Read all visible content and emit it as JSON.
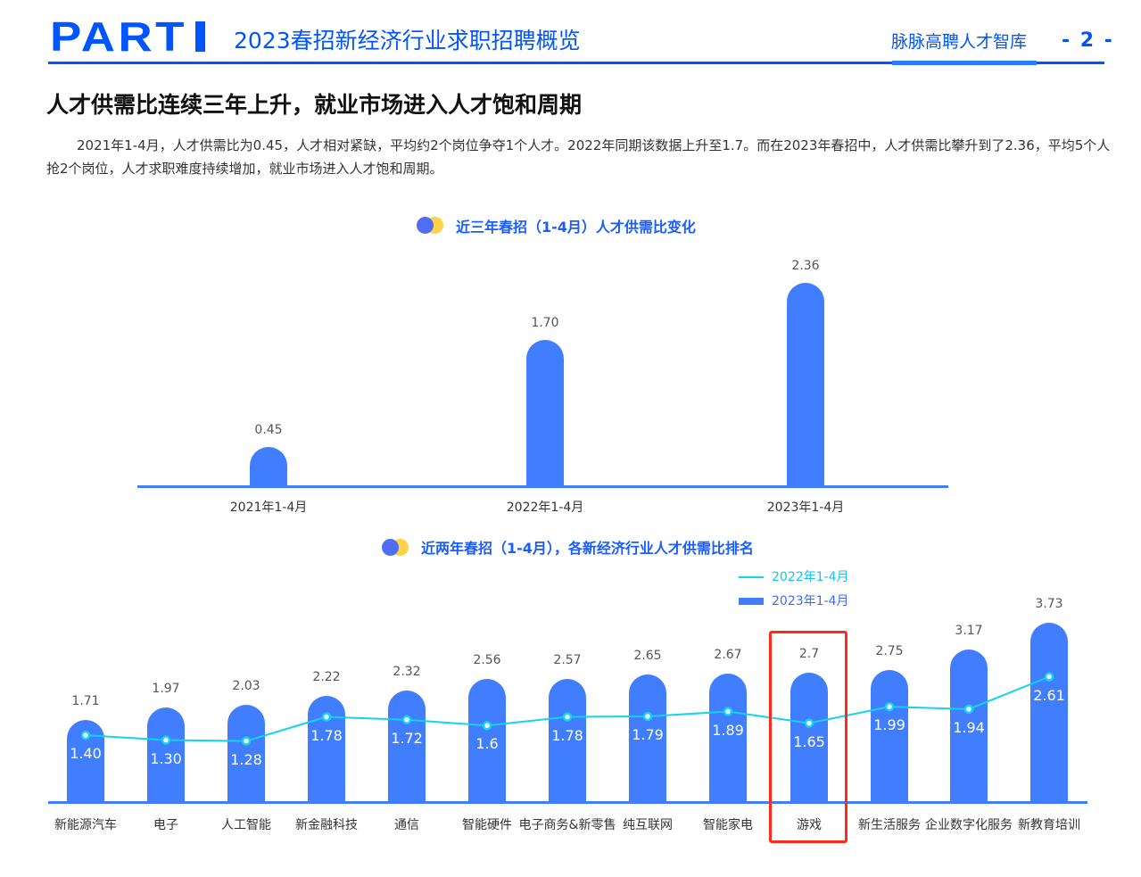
{
  "header": {
    "part_label": "PART",
    "title": "2023春招新经济行业求职招聘概览",
    "brand": "脉脉高聘人才智库",
    "page_number": "- 2 -"
  },
  "section": {
    "heading": "人才供需比连续三年上升，就业市场进入人才饱和周期",
    "paragraph": "2021年1-4月，人才供需比为0.45，人才相对紧缺，平均约2个岗位争夺1个人才。2022年同期该数据上升至1.7。而在2023年春招中，人才供需比攀升到了2.36，平均5个人抢2个岗位，人才求职难度持续增加，就业市场进入人才饱和周期。"
  },
  "colors": {
    "brand_blue": "#0055ff",
    "bar_blue": "#417dff",
    "line_cyan": "#12d4ee",
    "highlight_red": "#ff2a1a",
    "dot_blue": "#4f6df5",
    "dot_yellow": "#ffd24a"
  },
  "chart_data": [
    {
      "type": "bar",
      "title": "近三年春招（1-4月）人才供需比变化",
      "categories": [
        "2021年1-4月",
        "2022年1-4月",
        "2023年1-4月"
      ],
      "values": [
        0.45,
        1.7,
        2.36
      ],
      "value_labels": [
        "0.45",
        "1.70",
        "2.36"
      ],
      "xlabel": "",
      "ylabel": "",
      "ylim": [
        0,
        2.5
      ],
      "grid": false,
      "legend": null
    },
    {
      "type": "bar",
      "title": "近两年春招（1-4月），各新经济行业人才供需比排名",
      "categories": [
        "新能源汽车",
        "电子",
        "人工智能",
        "新金融科技",
        "通信",
        "智能硬件",
        "电子商务&新零售",
        "纯互联网",
        "智能家电",
        "游戏",
        "新生活服务",
        "企业数字化服务",
        "新教育培训"
      ],
      "series": [
        {
          "name": "2023年1-4月",
          "type": "bar",
          "values": [
            1.71,
            1.97,
            2.03,
            2.22,
            2.32,
            2.56,
            2.57,
            2.65,
            2.67,
            2.7,
            2.75,
            3.17,
            3.73
          ],
          "labels": [
            "1.71",
            "1.97",
            "2.03",
            "2.22",
            "2.32",
            "2.56",
            "2.57",
            "2.65",
            "2.67",
            "2.7",
            "2.75",
            "3.17",
            "3.73"
          ]
        },
        {
          "name": "2022年1-4月",
          "type": "line",
          "values": [
            1.4,
            1.3,
            1.28,
            1.78,
            1.72,
            1.6,
            1.78,
            1.79,
            1.89,
            1.65,
            1.99,
            1.94,
            2.61
          ],
          "labels": [
            "1.40",
            "1.30",
            "1.28",
            "1.78",
            "1.72",
            "1.6",
            "1.78",
            "1.79",
            "1.89",
            "1.65",
            "1.99",
            "1.94",
            "2.61"
          ]
        }
      ],
      "legend": [
        "2022年1-4月",
        "2023年1-4月"
      ],
      "legend_position": "top-right",
      "highlighted_category": "游戏",
      "xlabel": "",
      "ylabel": "",
      "ylim": [
        0,
        4
      ],
      "grid": false
    }
  ]
}
